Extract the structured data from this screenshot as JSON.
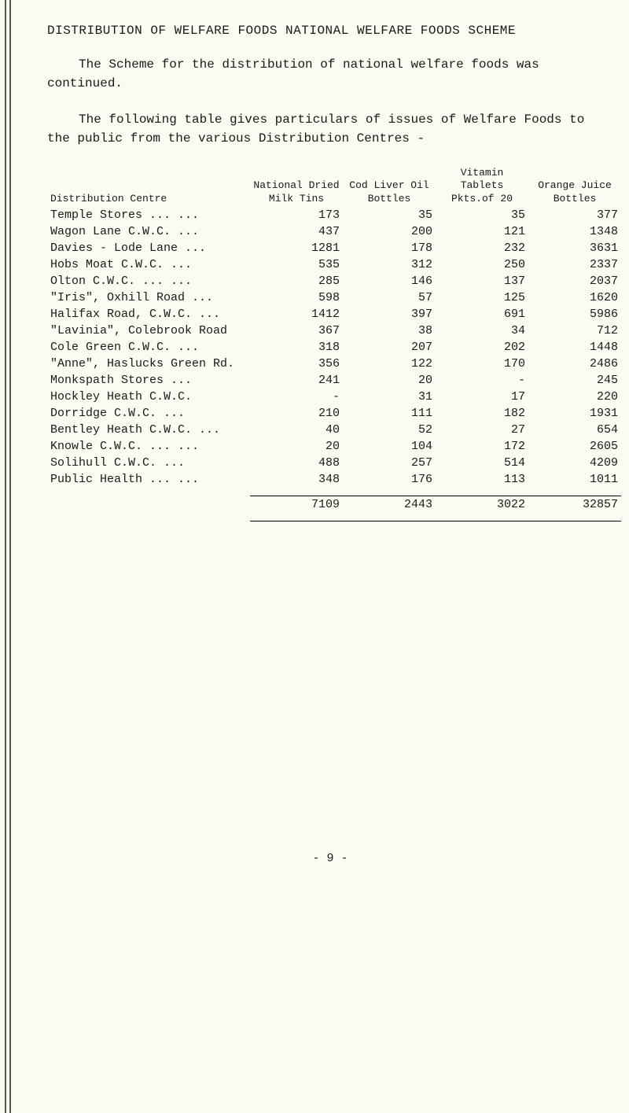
{
  "title": "DISTRIBUTION OF WELFARE FOODS   NATIONAL WELFARE FOODS SCHEME",
  "para1": "The Scheme for the distribution of national welfare foods was continued.",
  "para2": "The following table gives particulars of issues of Welfare Foods to the public from the various Distribution Centres -",
  "page_number": "- 9 -",
  "table": {
    "header": {
      "centre": "Distribution Centre",
      "col1": "National\nDried\nMilk\nTins",
      "col2": "Cod\nLiver\nOil\nBottles",
      "col3": "Vitamin\nTablets\nPkts.of 20",
      "col4": "Orange\nJuice\nBottles"
    },
    "rows": [
      {
        "centre": "Temple Stores  ...   ...",
        "c1": "173",
        "c2": "35",
        "c3": "35",
        "c4": "377"
      },
      {
        "centre": "Wagon Lane C.W.C.    ...",
        "c1": "437",
        "c2": "200",
        "c3": "121",
        "c4": "1348"
      },
      {
        "centre": "Davies - Lode Lane   ...",
        "c1": "1281",
        "c2": "178",
        "c3": "232",
        "c4": "3631"
      },
      {
        "centre": "Hobs Moat C.W.C.     ...",
        "c1": "535",
        "c2": "312",
        "c3": "250",
        "c4": "2337"
      },
      {
        "centre": "Olton C.W.C.   ...   ...",
        "c1": "285",
        "c2": "146",
        "c3": "137",
        "c4": "2037"
      },
      {
        "centre": "\"Iris\", Oxhill Road  ...",
        "c1": "598",
        "c2": "57",
        "c3": "125",
        "c4": "1620"
      },
      {
        "centre": "Halifax Road, C.W.C. ...",
        "c1": "1412",
        "c2": "397",
        "c3": "691",
        "c4": "5986"
      },
      {
        "centre": "\"Lavinia\", Colebrook Road",
        "c1": "367",
        "c2": "38",
        "c3": "34",
        "c4": "712"
      },
      {
        "centre": "Cole Green C.W.C.    ...",
        "c1": "318",
        "c2": "207",
        "c3": "202",
        "c4": "1448"
      },
      {
        "centre": "\"Anne\", Haslucks Green Rd.",
        "c1": "356",
        "c2": "122",
        "c3": "170",
        "c4": "2486"
      },
      {
        "centre": "Monkspath Stores     ...",
        "c1": "241",
        "c2": "20",
        "c3": "-",
        "c4": "245"
      },
      {
        "centre": "Hockley Heath C.W.C.",
        "c1": "-",
        "c2": "31",
        "c3": "17",
        "c4": "220"
      },
      {
        "centre": "Dorridge C.W.C.      ...",
        "c1": "210",
        "c2": "111",
        "c3": "182",
        "c4": "1931"
      },
      {
        "centre": "Bentley Heath C.W.C. ...",
        "c1": "40",
        "c2": "52",
        "c3": "27",
        "c4": "654"
      },
      {
        "centre": "Knowle C.W.C.  ...   ...",
        "c1": "20",
        "c2": "104",
        "c3": "172",
        "c4": "2605"
      },
      {
        "centre": "Solihull C.W.C.      ...",
        "c1": "488",
        "c2": "257",
        "c3": "514",
        "c4": "4209"
      },
      {
        "centre": "Public Health  ...   ...",
        "c1": "348",
        "c2": "176",
        "c3": "113",
        "c4": "1011"
      }
    ],
    "totals": {
      "c1": "7109",
      "c2": "2443",
      "c3": "3022",
      "c4": "32857"
    }
  }
}
